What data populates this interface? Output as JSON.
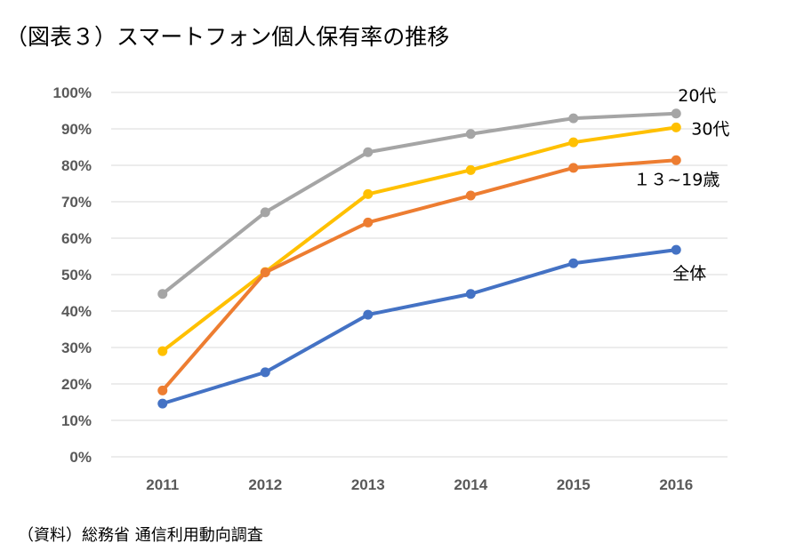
{
  "title": "（図表３）スマートフォン個人保有率の推移",
  "source": "（資料）総務省 通信利用動向調査",
  "chart_data": {
    "type": "line",
    "x": [
      "2011",
      "2012",
      "2013",
      "2014",
      "2015",
      "2016"
    ],
    "ylim": [
      0,
      100
    ],
    "yticks": [
      "0%",
      "10%",
      "20%",
      "30%",
      "40%",
      "50%",
      "60%",
      "70%",
      "80%",
      "90%",
      "100%"
    ],
    "grid": true,
    "legend": "end-of-line labels",
    "series": [
      {
        "name": "20代",
        "color": "#A5A5A5",
        "values": [
          44.7,
          67.1,
          83.6,
          88.6,
          92.9,
          94.2
        ]
      },
      {
        "name": "30代",
        "color": "#FFC000",
        "values": [
          29.0,
          50.7,
          72.1,
          78.7,
          86.3,
          90.4
        ]
      },
      {
        "name": "１３~19歳",
        "color": "#ED7D31",
        "values": [
          18.2,
          50.6,
          64.3,
          71.7,
          79.3,
          81.4
        ]
      },
      {
        "name": "全体",
        "color": "#4472C4",
        "values": [
          14.6,
          23.2,
          39.0,
          44.7,
          53.1,
          56.8
        ]
      }
    ]
  }
}
